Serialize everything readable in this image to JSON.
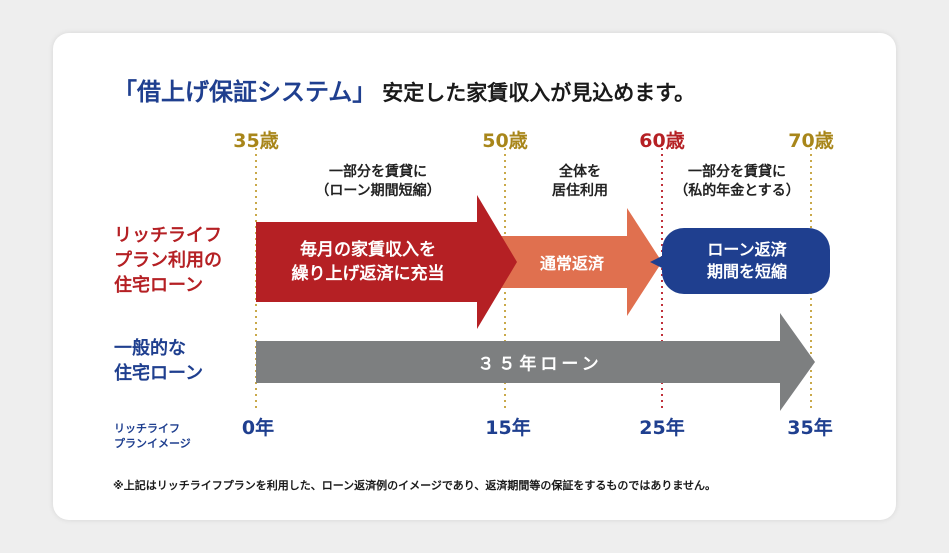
{
  "title": {
    "bracket": "「借上げ保証システム」",
    "rest": "安定した家賃収入が見込めます。"
  },
  "ages": [
    "35歳",
    "50歳",
    "60歳",
    "70歳"
  ],
  "notes": {
    "partial_rent": [
      "一部分を賃貸に",
      "（ローン期間短縮）"
    ],
    "full_residence": [
      "全体を",
      "居住利用"
    ],
    "partial_pension": [
      "一部分を賃貸に",
      "（私的年金とする）"
    ]
  },
  "rows": {
    "richlife": [
      "リッチライフ",
      "プラン利用の",
      "住宅ローン"
    ],
    "general": [
      "一般的な",
      "住宅ローン"
    ]
  },
  "arrows": {
    "red": [
      "毎月の家賃収入を",
      "繰り上げ返済に充当"
    ],
    "orange": "通常返済",
    "blue": [
      "ローン返済",
      "期間を短縮"
    ],
    "gray": "３５年ローン"
  },
  "years": [
    "0年",
    "15年",
    "25年",
    "35年"
  ],
  "bottom_label": [
    "リッチライフ",
    "プランイメージ"
  ],
  "footnote": "※上記はリッチライフプランを利用した、ローン返済例のイメージであり、返済期間等の保証をするものではありません。",
  "colors": {
    "navy": "#1f3f8f",
    "red": "#b52024",
    "orange": "#e0704f",
    "gray": "#7d7f80",
    "gold": "#a8861a"
  }
}
